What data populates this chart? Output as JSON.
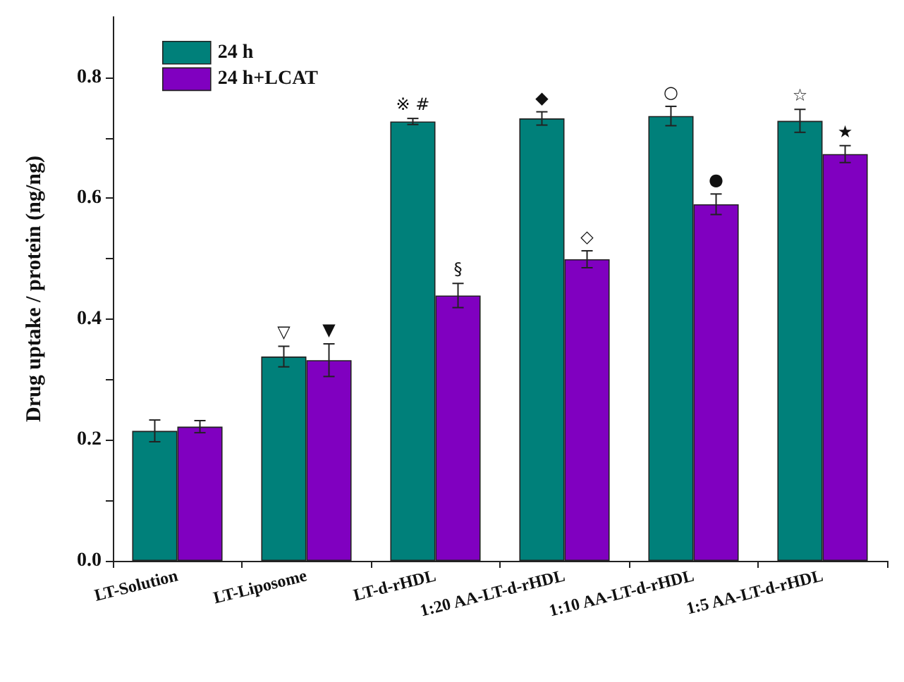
{
  "chart_data": {
    "type": "bar",
    "ylabel": "Drug uptake / protein (ng/ng)",
    "categories": [
      "LT-Solution",
      "LT-Liposome",
      "LT-d-rHDL",
      "1:20 AA-LT-d-rHDL",
      "1:10 AA-LT-d-rHDL",
      "1:5 AA-LT-d-rHDL"
    ],
    "series": [
      {
        "name": "24 h",
        "color": "#00807a",
        "values": [
          0.215,
          0.338,
          0.727,
          0.732,
          0.736,
          0.728
        ],
        "errors": [
          0.018,
          0.017,
          0.005,
          0.011,
          0.016,
          0.019
        ]
      },
      {
        "name": "24 h+LCAT",
        "color": "#8000c0",
        "values": [
          0.222,
          0.332,
          0.439,
          0.499,
          0.59,
          0.673
        ],
        "errors": [
          0.01,
          0.027,
          0.02,
          0.014,
          0.017,
          0.014
        ]
      }
    ],
    "ylim": [
      0,
      0.9
    ],
    "yticks": [
      "0.0",
      {
        "value": 0.1,
        "label": null
      },
      {
        "value": 0.2,
        "label": "0.2"
      },
      {
        "value": 0.3,
        "label": null
      },
      {
        "value": 0.4,
        "label": "0.4"
      },
      {
        "value": 0.5,
        "label": null
      },
      {
        "value": 0.6,
        "label": "0.6"
      },
      {
        "value": 0.7,
        "label": null
      },
      {
        "value": 0.8,
        "label": "0.8"
      }
    ],
    "annotations": [
      {
        "text": "▽",
        "x": "LT-Liposome",
        "y": 0.338
      },
      {
        "text": "▼",
        "x": "LT-Liposome",
        "y": 0.332
      },
      {
        "text": "※ #",
        "x": "LT-d-rHDL",
        "y": 0.727
      },
      {
        "text": "§",
        "x": "LT-d-rHDL",
        "y": 0.439
      },
      {
        "text": "◆",
        "x": "1:20 AA-LT-d-rHDL",
        "y": 0.732
      },
      {
        "text": "◇",
        "x": "1:20 AA-LT-d-rHDL",
        "y": 0.499
      },
      {
        "text": "○",
        "x": "1:10 AA-LT-d-rHDL",
        "y": 0.736
      },
      {
        "text": "●",
        "x": "1:10 AA-LT-d-rHDL",
        "y": 0.59
      },
      {
        "text": "☆",
        "x": "1:5 AA-LT-d-rHDL",
        "y": 0.728
      },
      {
        "text": "★",
        "x": "1:5 AA-LT-d-rHDL",
        "y": 0.673
      }
    ],
    "legend": "top left",
    "grid": false
  }
}
